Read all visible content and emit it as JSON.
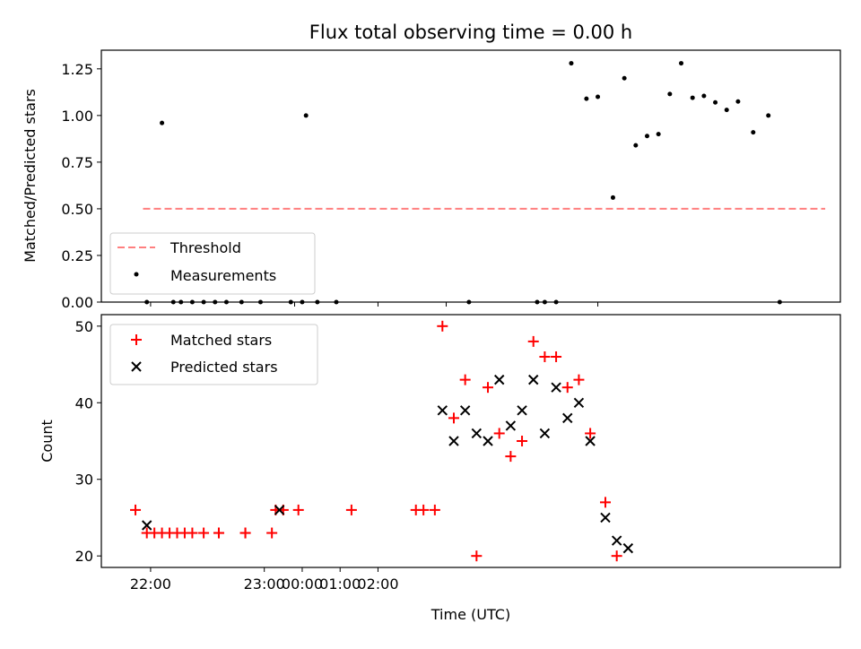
{
  "figure": {
    "title": "Flux total observing time = 0.00 h",
    "xlabel": "Time (UTC)"
  },
  "colors": {
    "threshold": "#ff7f7f",
    "measurement": "#000000",
    "matched": "#ff0000",
    "predicted": "#000000"
  },
  "chart_data": [
    {
      "type": "scatter",
      "ylabel": "Matched/Predicted stars",
      "xlim": [
        -0.8833,
        2.3667
      ],
      "ylim": [
        0,
        1.35
      ],
      "yticks": [
        0.0,
        0.25,
        0.5,
        0.75,
        1.0,
        1.25
      ],
      "ytick_labels": [
        "0.00",
        "0.25",
        "0.50",
        "0.75",
        "1.00",
        "1.25"
      ],
      "xticks": [
        -0.6667,
        0.3333
      ],
      "xticks_minor": [
        -0.0333,
        0.6333,
        1.3
      ],
      "legend": {
        "placement": "lower-left",
        "entries": [
          "Threshold",
          "Measurements"
        ]
      },
      "threshold": {
        "name": "Threshold",
        "y": 0.5,
        "x_range": [
          -0.7,
          2.3
        ]
      },
      "series": [
        {
          "name": "Measurements",
          "x": [
            -0.6833,
            -0.6167,
            -0.5667,
            -0.5333,
            -0.4833,
            -0.4333,
            -0.3833,
            -0.3333,
            -0.2667,
            -0.1833,
            -0.05,
            0.0,
            0.0167,
            0.0667,
            0.15,
            0.7333,
            1.0333,
            1.0667,
            1.1167,
            1.1833,
            1.25,
            1.3,
            1.3667,
            1.4167,
            1.4667,
            1.5167,
            1.5667,
            1.6167,
            1.6667,
            1.7167,
            1.7667,
            1.8167,
            1.8667,
            1.9167,
            1.9833,
            2.05,
            2.1
          ],
          "y": [
            0.0,
            0.96,
            0.0,
            0.0,
            0.0,
            0.0,
            0.0,
            0.0,
            0.0,
            0.0,
            0.0,
            0.0,
            1.0,
            0.0,
            0.0,
            0.0,
            0.0,
            0.0,
            0.0,
            1.28,
            1.09,
            1.1,
            0.56,
            1.2,
            0.84,
            0.89,
            0.9,
            1.115,
            1.28,
            1.095,
            1.105,
            1.07,
            1.03,
            1.075,
            0.91,
            1.0,
            0.0
          ]
        }
      ]
    },
    {
      "type": "scatter",
      "ylabel": "Count",
      "xlim": [
        -0.8833,
        2.3667
      ],
      "ylim": [
        18.5,
        51.5
      ],
      "yticks": [
        20,
        30,
        40,
        50
      ],
      "ytick_labels": [
        "20",
        "30",
        "40",
        "50"
      ],
      "xticks": [
        -0.6667,
        -0.1667,
        0.0,
        0.1667,
        0.3333
      ],
      "xtick_labels": [
        "22:00",
        "23:00",
        "00:00",
        "01:00",
        "02:00"
      ],
      "legend": {
        "placement": "upper-left",
        "entries": [
          "Matched stars",
          "Predicted stars"
        ]
      },
      "series": [
        {
          "name": "Matched stars",
          "x": [
            -0.7333,
            -0.6833,
            -0.65,
            -0.6167,
            -0.5833,
            -0.55,
            -0.5167,
            -0.4833,
            -0.4333,
            -0.3667,
            -0.3667,
            -0.25,
            -0.25,
            -0.1333,
            -0.1167,
            -0.0833,
            -0.0167,
            0.2167,
            0.5,
            0.5333,
            0.5833,
            0.6167,
            0.6667,
            0.7167,
            0.7667,
            0.8167,
            0.8667,
            0.9167,
            0.9667,
            1.0167,
            1.0667,
            1.1167,
            1.1667,
            1.2167,
            1.2667,
            1.3333,
            1.3833
          ],
          "y": [
            26,
            23,
            23,
            23,
            23,
            23,
            23,
            23,
            23,
            23,
            23,
            23,
            23,
            23,
            26,
            26,
            26,
            26,
            26,
            26,
            26,
            50,
            38,
            43,
            20,
            42,
            36,
            33,
            35,
            48,
            46,
            46,
            42,
            43,
            36,
            27,
            20
          ]
        },
        {
          "name": "Predicted stars",
          "x": [
            -0.6833,
            -0.1,
            0.6167,
            0.6667,
            0.7167,
            0.7667,
            0.8167,
            0.8667,
            0.9167,
            0.9667,
            1.0167,
            1.0667,
            1.1167,
            1.1667,
            1.2167,
            1.2667,
            1.3333,
            1.3833,
            1.4333
          ],
          "y": [
            24,
            26,
            39,
            35,
            39,
            36,
            35,
            43,
            37,
            39,
            43,
            36,
            42,
            38,
            40,
            35,
            25,
            22,
            21
          ]
        }
      ]
    }
  ]
}
